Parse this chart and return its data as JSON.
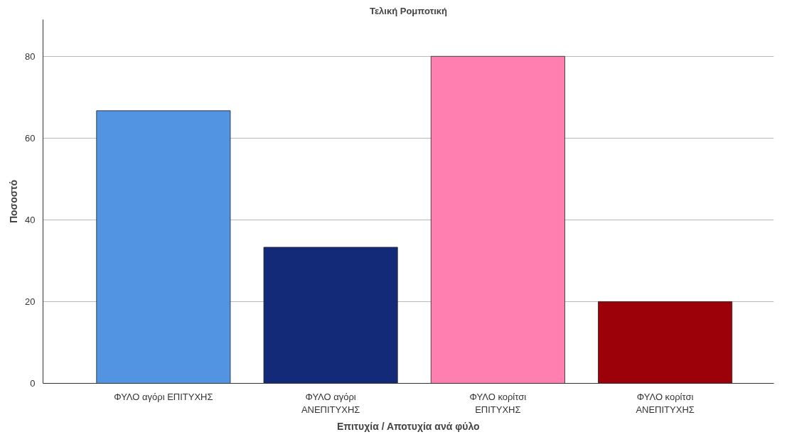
{
  "chart_data": {
    "type": "bar",
    "title": "Τελική Ρομποτική",
    "xlabel": "Επιτυχία / Αποτυχία ανά φύλο",
    "ylabel": "Ποσοστό",
    "categories": [
      "ΦΥΛΟ αγόρι ΕΠΙΤΥΧΗΣ",
      "ΦΥΛΟ αγόρι\nΑΝΕΠΙΤΥΧΗΣ",
      "ΦΥΛΟ κορίτσι\nΕΠΙΤΥΧΗΣ",
      "ΦΥΛΟ κορίτσι\nΑΝΕΠΙΤΥΧΗΣ"
    ],
    "values": [
      66.7,
      33.3,
      80,
      20
    ],
    "colors": [
      "#5294e2",
      "#132a78",
      "#ff80b0",
      "#9c0008"
    ],
    "ylim": [
      0,
      89
    ],
    "yticks": [
      0,
      20,
      40,
      60,
      80
    ],
    "grid": "y"
  }
}
